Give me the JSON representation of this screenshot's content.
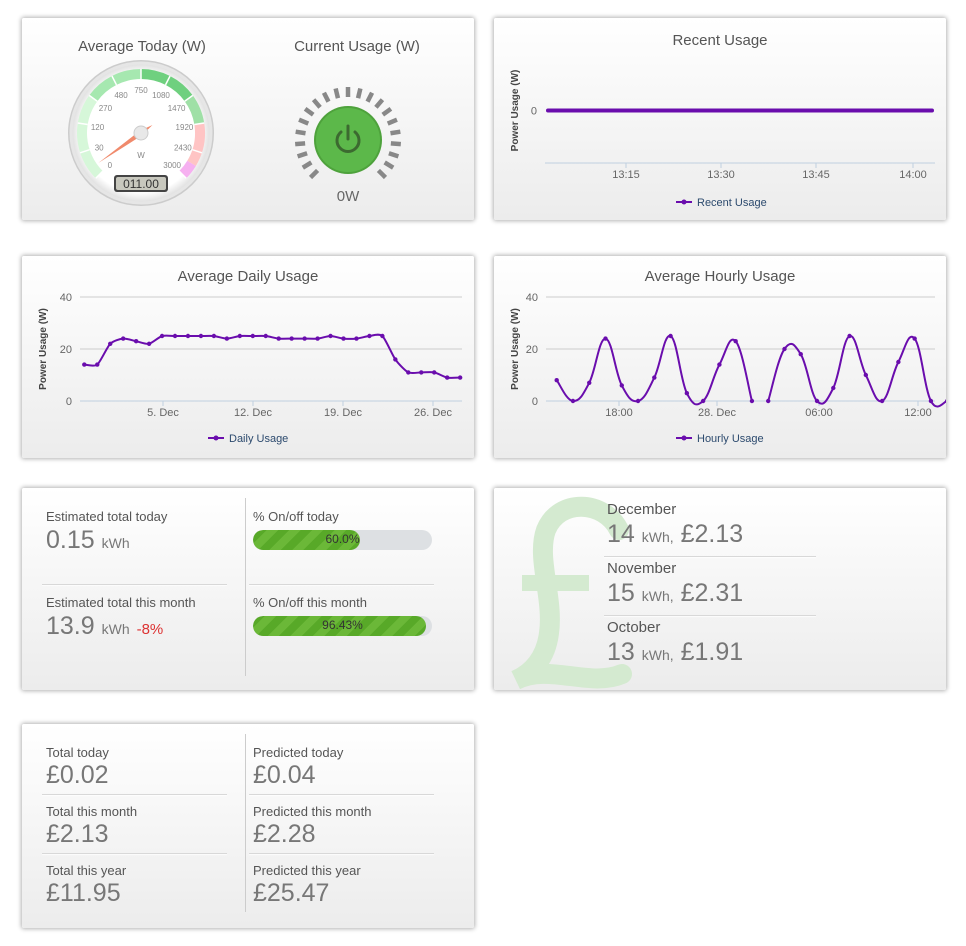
{
  "gauge_panel": {
    "avg_title": "Average Today (W)",
    "current_title": "Current Usage (W)",
    "gauge_labels": [
      "0",
      "30",
      "120",
      "270",
      "480",
      "750",
      "1080",
      "1470",
      "1920",
      "2430",
      "3000"
    ],
    "unit": "W",
    "odometer": "011.00",
    "needle_value": 11,
    "current_value": "0W",
    "power_icon": "power-icon",
    "button_color": "#5cb84a"
  },
  "chart_data": [
    {
      "type": "line",
      "title": "Recent Usage",
      "ylabel": "Power Usage (W)",
      "yticks": [
        "0"
      ],
      "xticks": [
        "13:15",
        "13:30",
        "13:45",
        "14:00"
      ],
      "series": [
        {
          "name": "Recent Usage",
          "x_range": [
            "13:02",
            "14:03"
          ],
          "values_constant": 0
        }
      ],
      "legend": "bottom",
      "color": "#6a0dad"
    },
    {
      "type": "line",
      "title": "Average Daily Usage",
      "ylabel": "Power Usage (W)",
      "ylim": [
        0,
        40
      ],
      "yticks": [
        "0",
        "20",
        "40"
      ],
      "xticks": [
        "5. Dec",
        "12. Dec",
        "19. Dec",
        "26. Dec"
      ],
      "x": [
        "29 Nov",
        "30 Nov",
        "1 Dec",
        "2 Dec",
        "3 Dec",
        "4 Dec",
        "5 Dec",
        "6 Dec",
        "7 Dec",
        "8 Dec",
        "9 Dec",
        "10 Dec",
        "11 Dec",
        "12 Dec",
        "13 Dec",
        "14 Dec",
        "15 Dec",
        "16 Dec",
        "17 Dec",
        "18 Dec",
        "19 Dec",
        "20 Dec",
        "21 Dec",
        "22 Dec",
        "23 Dec",
        "24 Dec",
        "25 Dec",
        "26 Dec",
        "27 Dec",
        "28 Dec"
      ],
      "series": [
        {
          "name": "Daily Usage",
          "values": [
            14,
            14,
            22,
            24,
            23,
            22,
            25,
            25,
            25,
            25,
            25,
            24,
            25,
            25,
            25,
            24,
            24,
            24,
            24,
            25,
            24,
            24,
            25,
            25,
            16,
            11,
            11,
            11,
            9,
            9
          ]
        }
      ],
      "legend": "bottom",
      "color": "#6a0dad"
    },
    {
      "type": "line",
      "title": "Average Hourly Usage",
      "ylabel": "Power Usage (W)",
      "ylim": [
        0,
        40
      ],
      "yticks": [
        "0",
        "20",
        "40"
      ],
      "xticks": [
        "18:00",
        "28. Dec",
        "06:00",
        "12:00"
      ],
      "x": [
        "27 Dec 14:10",
        "27 Dec 15:10",
        "27 Dec 16:10",
        "27 Dec 17:10",
        "27 Dec 18:10",
        "27 Dec 19:10",
        "27 Dec 20:10",
        "27 Dec 21:10",
        "27 Dec 22:10",
        "27 Dec 23:10",
        "28 Dec 00:10",
        "28 Dec 01:10",
        "28 Dec 02:10",
        "28 Dec 03:10",
        "28 Dec 04:10",
        "28 Dec 05:10",
        "28 Dec 06:10",
        "28 Dec 07:10",
        "28 Dec 08:10",
        "28 Dec 09:10",
        "28 Dec 10:10",
        "28 Dec 11:10",
        "28 Dec 12:10",
        "28 Dec 13:10",
        "28 Dec 14:10"
      ],
      "series": [
        {
          "name": "Hourly Usage",
          "values": [
            8,
            0,
            7,
            24,
            6,
            0,
            9,
            25,
            3,
            0,
            14,
            23,
            0,
            0,
            20,
            18,
            0,
            5,
            25,
            10,
            0,
            15,
            24,
            0,
            0
          ],
          "line_break_after": "28 Dec 02:10"
        }
      ],
      "legend": "bottom",
      "color": "#6a0dad"
    }
  ],
  "energy": {
    "est_today_label": "Estimated total today",
    "est_today_value": "0.15",
    "est_today_unit": "kWh",
    "est_month_label": "Estimated total this month",
    "est_month_value": "13.9",
    "est_month_unit": "kWh",
    "est_month_change": "-8%",
    "onoff_today_label": "% On/off today",
    "onoff_today_pct": 60.0,
    "onoff_today_text": "60.0%",
    "onoff_month_label": "% On/off this month",
    "onoff_month_pct": 96.43,
    "onoff_month_text": "96.43%"
  },
  "months": [
    {
      "name": "December",
      "kwh": "14",
      "unit": "kWh,",
      "cost": "£2.13"
    },
    {
      "name": "November",
      "kwh": "15",
      "unit": "kWh,",
      "cost": "£2.31"
    },
    {
      "name": "October",
      "kwh": "13",
      "unit": "kWh,",
      "cost": "£1.91"
    }
  ],
  "months_bg_symbol": "£",
  "costs": {
    "left": [
      {
        "label": "Total today",
        "value": "£0.02"
      },
      {
        "label": "Total this month",
        "value": "£2.13"
      },
      {
        "label": "Total this year",
        "value": "£11.95"
      }
    ],
    "right": [
      {
        "label": "Predicted today",
        "value": "£0.04"
      },
      {
        "label": "Predicted this month",
        "value": "£2.28"
      },
      {
        "label": "Predicted this year",
        "value": "£25.47"
      }
    ]
  }
}
